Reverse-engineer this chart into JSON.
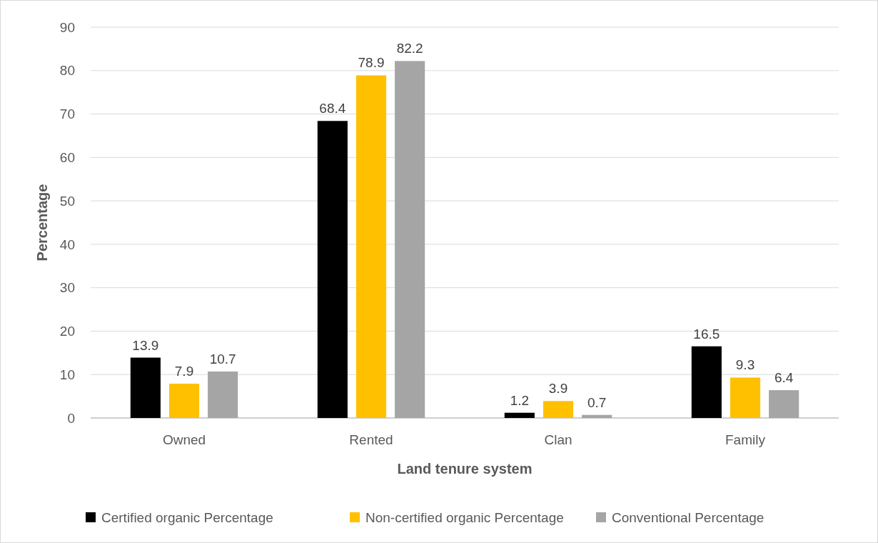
{
  "chart_data": {
    "type": "bar",
    "xlabel": "Land tenure system",
    "ylabel": "Percentage",
    "categories": [
      "Owned",
      "Rented",
      "Clan",
      "Family"
    ],
    "series": [
      {
        "name": "Certified organic Percentage",
        "color": "#000000",
        "values": [
          13.9,
          68.4,
          1.2,
          16.5
        ]
      },
      {
        "name": "Non-certified organic Percentage",
        "color": "#ffc000",
        "values": [
          7.9,
          78.9,
          3.9,
          9.3
        ]
      },
      {
        "name": "Conventional Percentage",
        "color": "#a5a5a5",
        "values": [
          10.7,
          82.2,
          0.7,
          6.4
        ]
      }
    ],
    "ylim": [
      0,
      90
    ],
    "yticks": [
      0,
      10,
      20,
      30,
      40,
      50,
      60,
      70,
      80,
      90
    ],
    "grid": "y",
    "legend": "bottom",
    "data_labels": true
  }
}
